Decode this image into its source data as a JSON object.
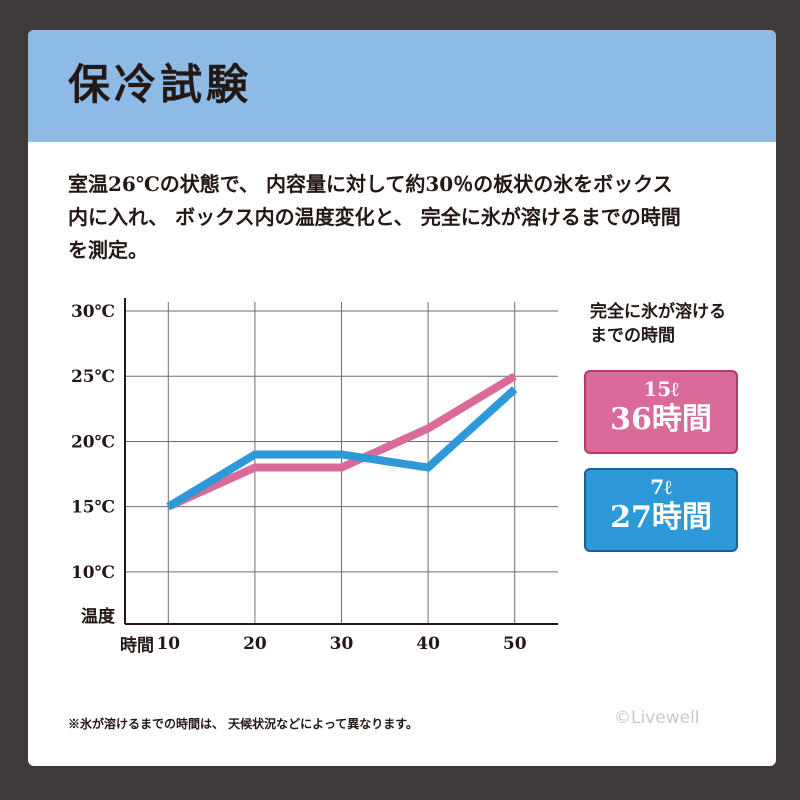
{
  "header": {
    "title": "保冷試験"
  },
  "description": {
    "lines": [
      "室温26℃の状態で、 内容量に対して約30％の板状の氷をボックス",
      "内に入れ、 ボックス内の温度変化と、 完全に氷が溶けるまでの時間",
      "を測定。"
    ]
  },
  "chart_data": {
    "type": "line",
    "x": [
      10,
      20,
      30,
      40,
      50
    ],
    "x_tick_labels": [
      "10",
      "20",
      "30",
      "40",
      "50"
    ],
    "y_ticks": [
      10,
      15,
      20,
      25,
      30
    ],
    "y_tick_labels": [
      "10℃",
      "15℃",
      "20℃",
      "25℃",
      "30℃"
    ],
    "xlabel": "時間",
    "ylabel": "温度",
    "xlim": [
      5,
      55
    ],
    "ylim": [
      6,
      31
    ],
    "grid": true,
    "series": [
      {
        "name": "15ℓ",
        "color": "#d96a9a",
        "values": [
          15,
          18,
          18,
          21,
          25
        ]
      },
      {
        "name": "7ℓ",
        "color": "#2e99d8",
        "values": [
          15,
          19,
          19,
          18,
          24
        ]
      }
    ]
  },
  "legend": {
    "title_lines": [
      "完全に氷が溶ける",
      "までの時間"
    ],
    "items": [
      {
        "capacity": "15ℓ",
        "duration": "36時間"
      },
      {
        "capacity": "7ℓ",
        "duration": "27時間"
      }
    ]
  },
  "footnote": "※氷が溶けるまでの時間は、 天候状況などによって異なります。",
  "copyright": "©Livewell"
}
